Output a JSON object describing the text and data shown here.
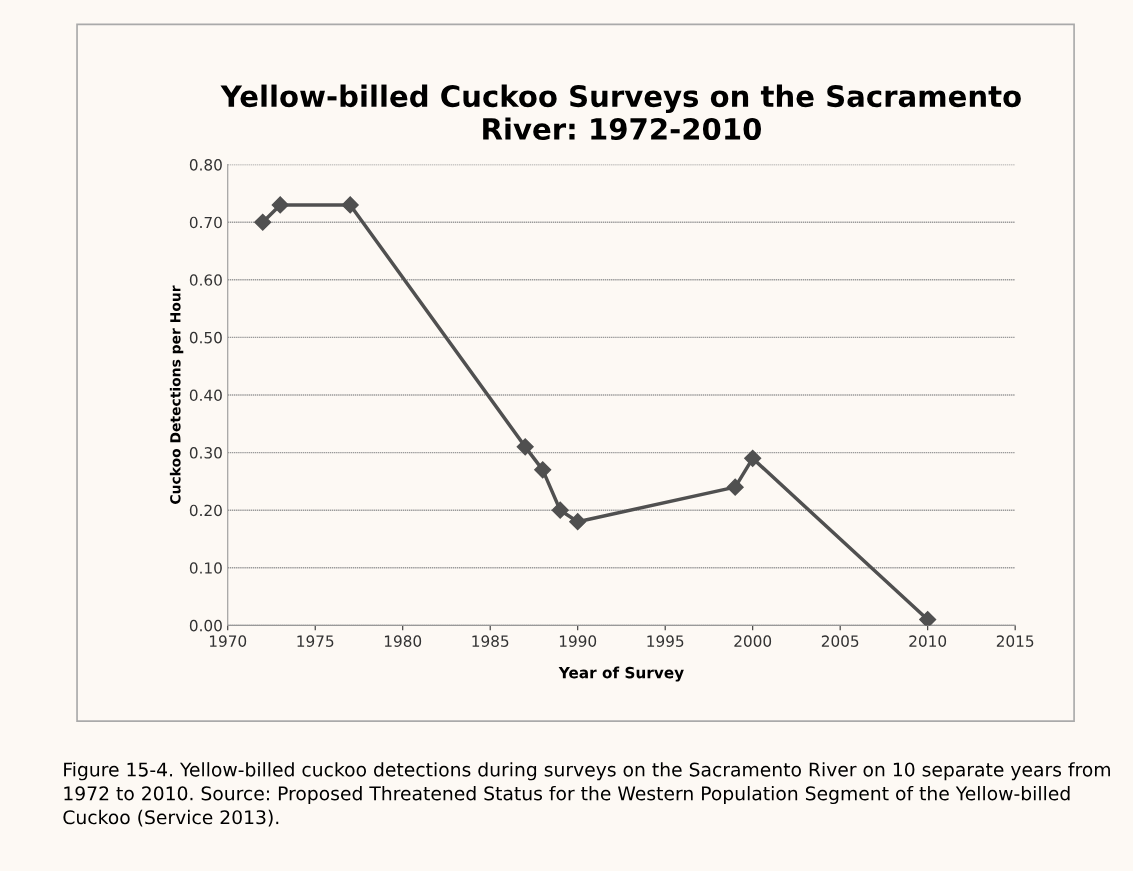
{
  "chart_data": {
    "type": "line",
    "title": "Yellow-billed Cuckoo Surveys on the Sacramento\nRiver: 1972-2010",
    "xlabel": "Year of Survey",
    "ylabel": "Cuckoo Detections per Hour",
    "x": [
      1972,
      1973,
      1977,
      1987,
      1988,
      1989,
      1990,
      1999,
      2000,
      2010
    ],
    "series": [
      {
        "color": "#505050",
        "values": [
          0.7,
          0.73,
          0.73,
          0.31,
          0.27,
          0.2,
          0.18,
          0.24,
          0.29,
          0.01
        ]
      }
    ],
    "xlim": [
      1970,
      2015
    ],
    "xticks": [
      1970,
      1975,
      1980,
      1985,
      1990,
      1995,
      2000,
      2005,
      2010,
      2015
    ],
    "ylim": [
      0,
      0.8
    ],
    "yticks": [
      {
        "value": 0,
        "label": "0.00"
      },
      {
        "value": 0.1,
        "label": "0.10"
      },
      {
        "value": 0.2,
        "label": "0.20"
      },
      {
        "value": 0.3,
        "label": "0.30"
      },
      {
        "value": 0.4,
        "label": "0.40"
      },
      {
        "value": 0.5,
        "label": "0.50"
      },
      {
        "value": 0.6,
        "label": "0.60"
      },
      {
        "value": 0.7,
        "label": "0.70"
      },
      {
        "value": 0.8,
        "label": "0.80"
      }
    ],
    "grid": "y",
    "marker": "diamond",
    "line_style": "solid",
    "annotations": [
      "Figure 15-4. Yellow-billed cuckoo detections during surveys on the Sacramento River on 10 separate years from 1972 to 2010. Source: Proposed Threatened Status for the Western Population Segment of the Yellow-billed Cuckoo (Service 2013)."
    ]
  }
}
